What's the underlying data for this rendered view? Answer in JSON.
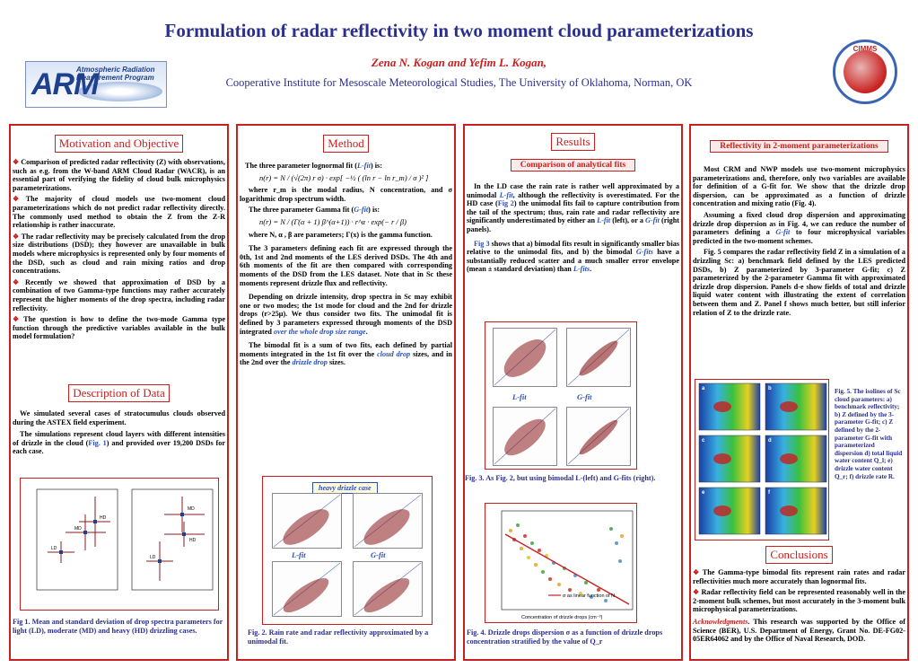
{
  "header": {
    "title": "Formulation of radar reflectivity in two moment cloud parameterizations",
    "authors": "Zena N. Kogan and Yefim L. Kogan,",
    "affiliation": "Cooperative Institute for Mesoscale Meteorological Studies, The University of Oklahoma, Norman, OK",
    "arm_logo_text": "ARM",
    "arm_logo_sub": "Atmospheric Radiation Measurement Program",
    "cimms_logo_text": "CIMMS"
  },
  "col1": {
    "motivation_title": "Motivation and Objective",
    "bullets": [
      "Comparison of predicted radar reflectivity (Z) with observations, such as e.g. from the W-band ARM Cloud Radar (WACR), is an essential part of verifying the fidelity of cloud bulk microphysics parameterizations.",
      "The majority of cloud models use two-moment cloud parameterizations which do not predict radar reflectivity directly. The commonly used method to obtain the Z from the Z-R relationship is rather inaccurate.",
      "The radar reflectivity may be precisely calculated from the drop size distributions (DSD); they however are unavailable in bulk models where microphysics is represented only by four moments of the DSD, such as cloud and rain mixing ratios and drop concentrations.",
      "Recently we showed that approximation of DSD by a combination of two Gamma-type functions may rather accurately represent the higher moments of the drop spectra, including radar reflectivity.",
      "The question is how to define the two-mode Gamma type function through the predictive variables available in the bulk model formulation?"
    ],
    "data_title": "Description of Data",
    "data_p1": "We simulated several cases of stratocumulus clouds observed during the ASTEX field experiment.",
    "data_p2_a": "The simulations represent cloud layers with different intensities of drizzle in the cloud (",
    "data_p2_fig": "Fig. 1",
    "data_p2_b": ") and provided over 19,200 DSDs for  each case.",
    "fig1_labels": [
      "LD",
      "MD",
      "HD",
      "LD",
      "MD",
      "HD"
    ],
    "fig1_caption": "Fig 1. Mean and standard deviation of drop spectra parameters for light (LD), moderate (MD) and heavy (HD) drizzling cases."
  },
  "col2": {
    "title": "Method",
    "p1_a": "The three parameter lognormal fit (",
    "p1_fit": "L-fit",
    "p1_b": ") is:",
    "f1": "n(r) = N / (√(2π) r σ) · exp[ −½ ( (ln r − ln r_m) / σ )² ]",
    "p2": "where r_m is the modal radius, N concentration, and σ logarithmic drop spectrum width.",
    "p3_a": "The three parameter Gamma fit (",
    "p3_fit": "G-fit",
    "p3_b": ") is:",
    "f2": "n(r) = N / (Γ(α + 1) β^(α+1)) · r^α · exp(− r / β)",
    "p4": "where N,  α ,  β  are parameters; Γ(x) is the gamma function.",
    "p5": "The 3 parameters defining each fit are expressed through the 0th, 1st and 2nd moments of the LES derived DSDs. The 4th and 6th moments of the fit are then compared with corresponding moments of the DSD from the LES dataset. Note that in Sc these moments represent drizzle flux and reflectivity.",
    "p6_a": "Depending on drizzle intensity, drop spectra in Sc may exhibit one or two modes; the 1st mode for cloud and the 2nd for drizzle drops (r>25μ). We thus consider two fits. The unimodal fit is defined by 3 parameters expressed through moments of the DSD integrated ",
    "p6_link": "over the whole drop size range",
    "p6_b": ".",
    "p7_a": "The bimodal fit is a sum of two fits, each defined by partial moments integrated in the 1st fit over the ",
    "p7_cloud": "cloud drop",
    "p7_b": " sizes, and in the 2nd over the ",
    "p7_drizzle": "drizzle drop",
    "p7_c": " sizes.",
    "fig2_banner": "heavy drizzle case",
    "fig2_lfit": "L-fit",
    "fig2_gfit": "G-fit",
    "fig2_caption": "Fig. 2. Rain rate and radar reflectivity approximated by a unimodal fit."
  },
  "col3": {
    "title": "Results",
    "subtitle": "Comparison of analytical fits",
    "p1_a": "In the LD case the rain rate is rather well approximated by a unimodal ",
    "p1_lfit": "L-fit",
    "p1_b": ", although the reflectivity is overestimated. For the HD case (",
    "p1_fig": "Fig 2",
    "p1_c": ") the unimodal fits fail to capture contribution from the tail of the spectrum; thus, rain rate and radar reflectivity are significantly underestimated by either an ",
    "p1_lfit2": "L-fit",
    "p1_d": " (left), or a ",
    "p1_gfit": "G-fit",
    "p1_e": " (right panels).",
    "p2_fig": "Fig 3",
    "p2_a": " shows that a) bimodal fits result in significantly smaller bias relative to the unimodal fits, and b) the bimodal ",
    "p2_gfits": "G-fits",
    "p2_b": " have a substantially reduced scatter and a much smaller error envelope (mean ± standard deviation) than ",
    "p2_lfits": "L-fits",
    "p2_c": ".",
    "fig3_lfit": "L-fit",
    "fig3_gfit": "G-fit",
    "fig3_caption": "Fig. 3. As Fig. 2, but using bimodal L-(left) and G-fits (right).",
    "fig4_legend": "σ as linear function of N",
    "fig4_xlabel": "Concentration of drizzle drops (cm⁻³)",
    "fig4_caption": "Fig. 4. Drizzle drops dispersion σ as a function of drizzle drops concentration stratified by the value of Q_r"
  },
  "col4": {
    "subtitle": "Reflectivity in 2-moment parameterizations",
    "p1": "Most CRM and NWP models use two-moment microphysics parameterizations and, therefore, only two variables are available for definition of a G-fit for. We show that the drizzle drop dispersion, can be approximated as a function of drizzle concentration and mixing ratio (Fig. 4).",
    "p2_a": "Assuming a fixed cloud drop dispersion and approximating drizzle drop dispersion as in Fig. 4, we can reduce the number of parameters defining a ",
    "p2_gfit": "G-fit",
    "p2_b": " to four microphysical variables predicted in the two-moment schemes.",
    "p3": "Fig. 5 compares the radar reflectivity field Z in a simulation of a drizzling Sc: a) benchmark field defined by the LES predicted DSDs, b) Z parameterized by 3-parameter G-fit; c) Z parameterized by the 2-parameter Gamma fit with approximated drizzle drop dispersion. Panels d-e show fields of total and drizzle liquid water content with illustrating the extent of correlation between them and Z. Panel f shows much better, but still inferior relation of Z to the drizzle rate.",
    "fig5_caption": "Fig. 5. The isolines of Sc cloud parameters: a) benchmark reflectivity; b) Z defined by the 3-parameter G-fit; c) Z defined by the 2-parameter G-fit with parameterized dispersion d) total liquid water content Q_l; e) drizzle water content Q_r; f) drizzle rate R.",
    "panel_letters": [
      "a",
      "b",
      "c",
      "d",
      "e",
      "f"
    ],
    "conclusions_title": "Conclusions",
    "conc1": "The Gamma-type bimodal fits represent rain rates and radar reflectivities much more accurately than lognormal fits.",
    "conc2": "Radar reflectivity field can be represented reasonably well in the 2-moment bulk schemes, but most accurately in the 3-moment bulk microphysical parameterizations.",
    "ack_label": "Acknowledgments",
    "ack_text": ". This research was supported by the Office of Science (BER), U.S. Department of Energy, Grant No. DE-FG02-05ER64062 and by the Office of Naval Research, DOD."
  },
  "colors": {
    "accent_red": "#c8201e",
    "title_blue": "#2a2f8f",
    "link_blue": "#2a4fb8"
  }
}
